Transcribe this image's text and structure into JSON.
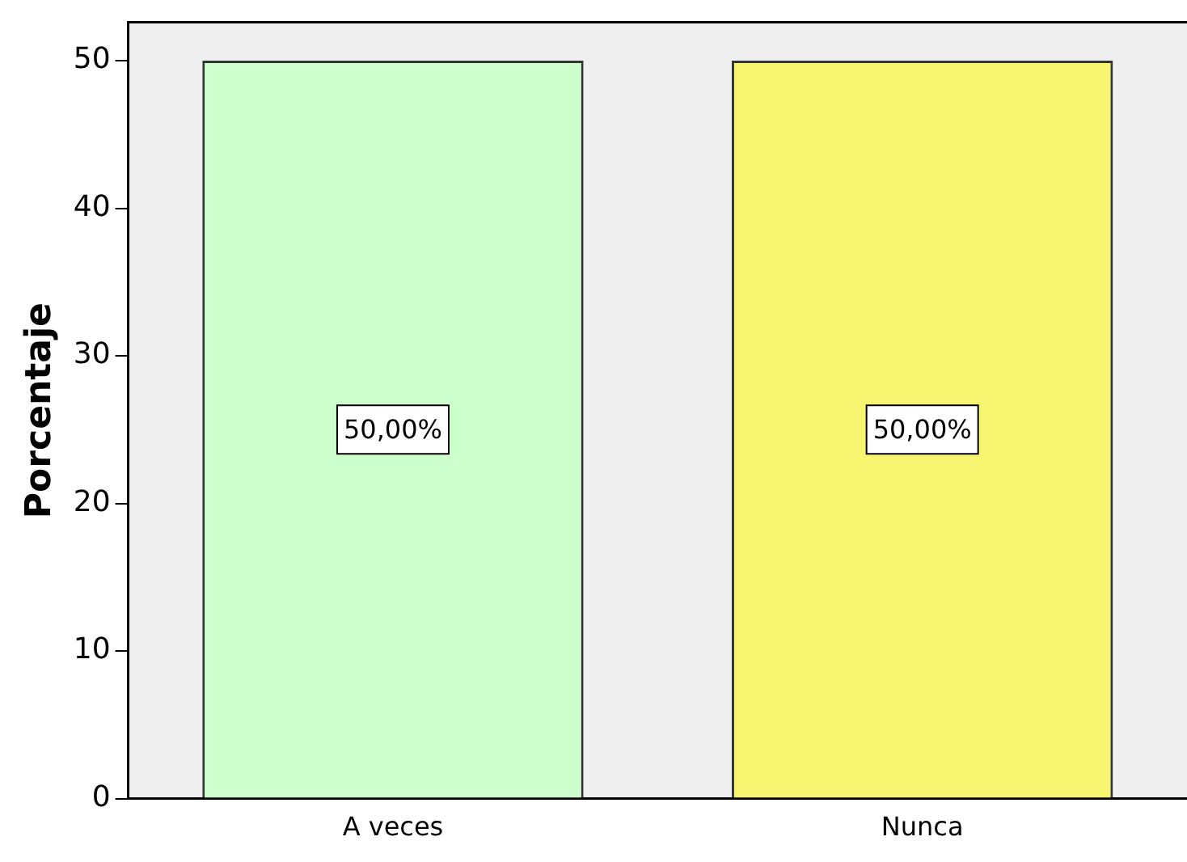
{
  "chart_data": {
    "type": "bar",
    "ylabel": "Porcentaje",
    "categories": [
      "A veces",
      "Nunca"
    ],
    "values": [
      50,
      50
    ],
    "colors": [
      "#ccffcc",
      "#f8f570"
    ],
    "value_labels": [
      "50,00%",
      "50,00%"
    ],
    "ylim": [
      0,
      52.6
    ],
    "yticks": [
      0,
      10,
      20,
      30,
      40,
      50
    ],
    "grid": false,
    "legend": false
  }
}
